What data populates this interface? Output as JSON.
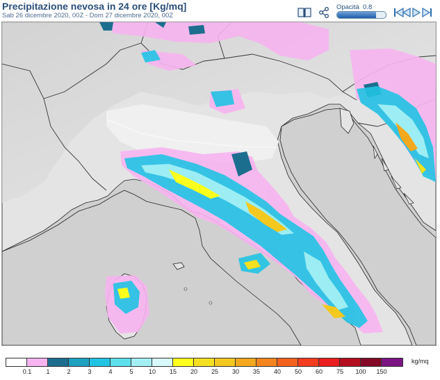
{
  "header": {
    "title": "Precipitazione nevosa in 24 ore [Kg/mq]",
    "subtitle": "Sab 26 dicembre 2020, 00Z - Dom 27 dicembre 2020, 00Z"
  },
  "toolbar": {
    "info_icon": "book-icon",
    "share_icon": "share-icon",
    "opacity_label": "Opacità",
    "opacity_value": "0.8",
    "opacity_fraction": 0.8,
    "nav_icons": [
      "first-frame-icon",
      "previous-frame-icon",
      "next-frame-icon",
      "last-frame-icon"
    ]
  },
  "map": {
    "land_color": "#e2e2e2",
    "sea_color": "#d0d0d0",
    "border_color": "#222222"
  },
  "legend": {
    "unit": "kg/mq",
    "labels": [
      "0.1",
      "1",
      "2",
      "3",
      "4",
      "5",
      "10",
      "15",
      "20",
      "25",
      "30",
      "35",
      "40",
      "50",
      "60",
      "75",
      "100",
      "150"
    ],
    "colors": [
      "#ffffff",
      "#f7b4f0",
      "#1c6e8e",
      "#1ea2c2",
      "#21c4e4",
      "#5ee0ec",
      "#a2f0f4",
      "#d8fafc",
      "#ffff1e",
      "#f4e01e",
      "#f4c81e",
      "#f4a81e",
      "#f4841e",
      "#f4601e",
      "#f43c1e",
      "#ea1e1e",
      "#b40e1e",
      "#820a26",
      "#7a1482"
    ]
  }
}
